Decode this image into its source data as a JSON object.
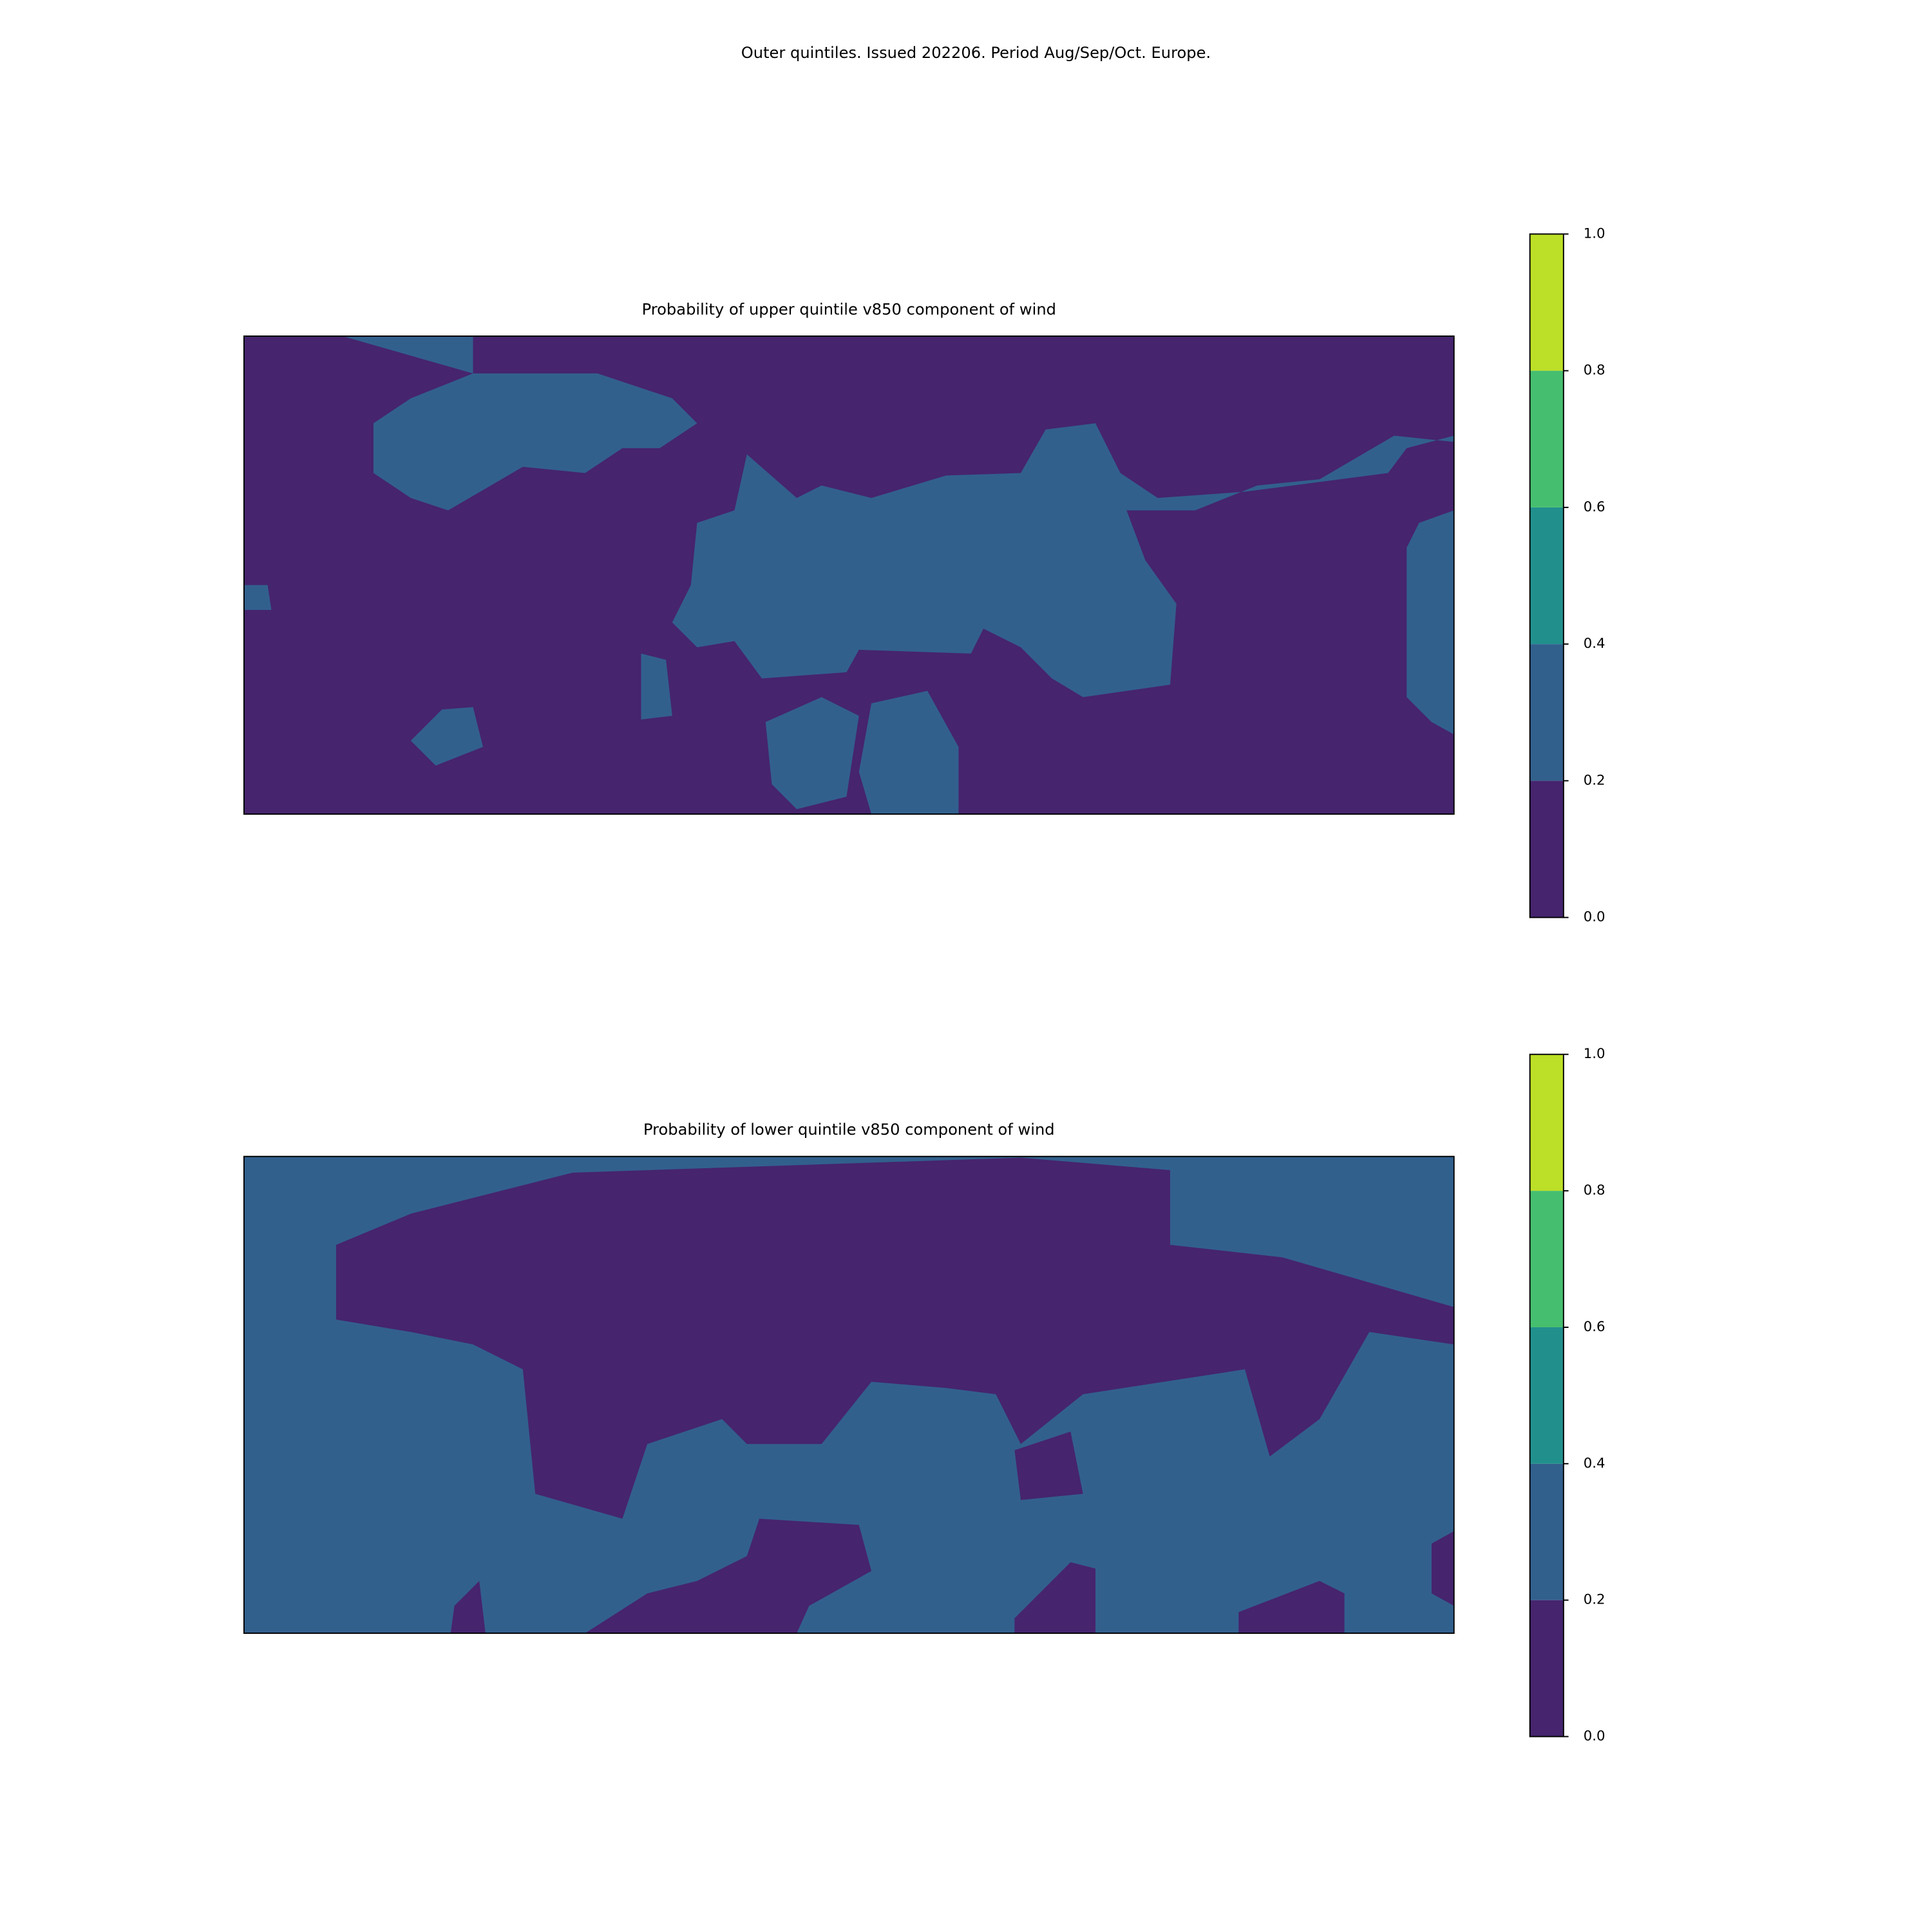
{
  "title": "Outer quintiles. Issued 202206. Period Aug/Sep/Oct. Europe.",
  "panels": [
    {
      "title": "Probability of upper quintile v850 component of wind",
      "colorbar": {
        "ticks": [
          {
            "value": 0,
            "label": "0.0"
          },
          {
            "value": 0.2,
            "label": "0.2"
          },
          {
            "value": 0.4,
            "label": "0.4"
          },
          {
            "value": 0.6,
            "label": "0.6"
          },
          {
            "value": 0.8,
            "label": "0.8"
          },
          {
            "value": 1,
            "label": "1.0"
          }
        ],
        "colors": [
          "#46246e",
          "#32608d",
          "#21908d",
          "#46be6f",
          "#bcdf27"
        ]
      }
    },
    {
      "title": "Probability of lower quintile v850 component of wind",
      "colorbar": {
        "ticks": [
          {
            "value": 0,
            "label": "0.0"
          },
          {
            "value": 0.2,
            "label": "0.2"
          },
          {
            "value": 0.4,
            "label": "0.4"
          },
          {
            "value": 0.6,
            "label": "0.6"
          },
          {
            "value": 0.8,
            "label": "0.8"
          },
          {
            "value": 1,
            "label": "1.0"
          }
        ],
        "colors": [
          "#46246e",
          "#32608d",
          "#21908d",
          "#46be6f",
          "#bcdf27"
        ]
      }
    }
  ]
}
